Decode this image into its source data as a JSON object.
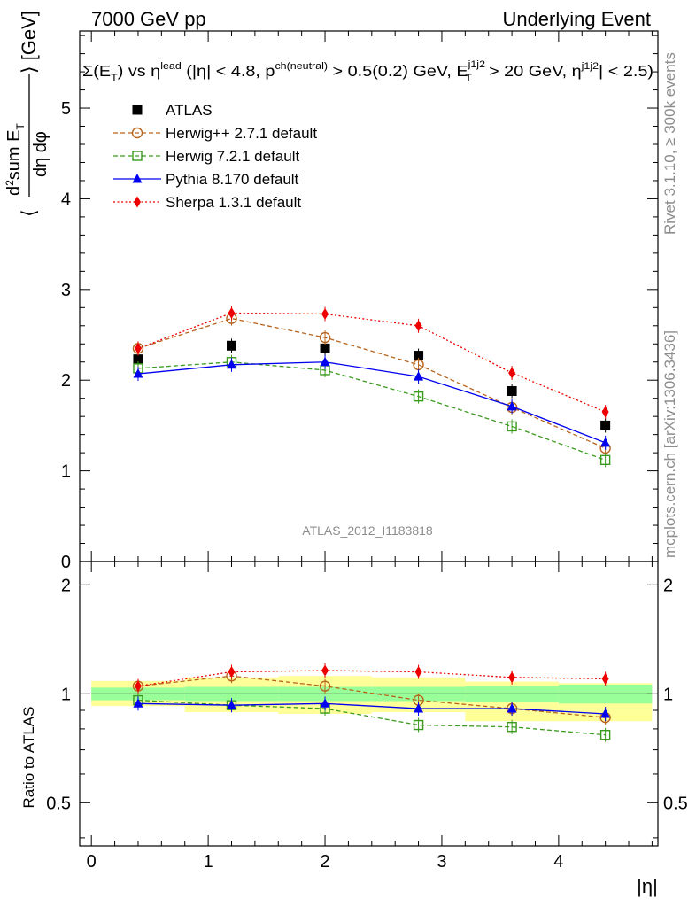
{
  "header": {
    "left": "7000 GeV pp",
    "right": "Underlying Event"
  },
  "side_labels": {
    "rivet": "Rivet 3.1.10, ≥ 300k events",
    "mcplots": "mcplots.cern.ch [arXiv:1306.3436]"
  },
  "watermark": "ATLAS_2012_I1183818",
  "chart_data": [
    {
      "type": "line",
      "panel": "main",
      "title": "Σ(E_T) vs η^lead (|η| < 4.8, p^ch(neutral) > 0.5(0.2) GeV, E_T^j1j2 > 20 GeV, η^j1j2| < 2.5)",
      "ylabel": "⟨ d²sum E_T / dη dφ ⟩ [GeV]",
      "xlabel": "|η|",
      "xlim": [
        -0.1,
        4.85
      ],
      "ylim": [
        0,
        5.85
      ],
      "xticks": [
        "0",
        "1",
        "2",
        "3",
        "4"
      ],
      "yticks": [
        "0",
        "1",
        "2",
        "3",
        "4",
        "5"
      ],
      "legend_position": "top-left",
      "x": [
        0.4,
        1.2,
        2.0,
        2.8,
        3.6,
        4.4
      ],
      "series": [
        {
          "name": "ATLAS",
          "values": [
            2.23,
            2.38,
            2.35,
            2.27,
            1.88,
            1.5
          ],
          "color": "#000000",
          "marker": "square-filled",
          "line": "none"
        },
        {
          "name": "Herwig++ 2.7.1 default",
          "values": [
            2.35,
            2.68,
            2.47,
            2.17,
            1.7,
            1.25
          ],
          "color": "#b8641c",
          "marker": "circle-open",
          "line": "dashed"
        },
        {
          "name": "Herwig 7.2.1 default",
          "values": [
            2.13,
            2.2,
            2.11,
            1.82,
            1.49,
            1.12
          ],
          "color": "#3a9a1e",
          "marker": "square-open",
          "line": "dashed"
        },
        {
          "name": "Pythia 8.170 default",
          "values": [
            2.07,
            2.17,
            2.2,
            2.04,
            1.71,
            1.31
          ],
          "color": "#0000ee",
          "marker": "triangle-filled",
          "line": "solid"
        },
        {
          "name": "Sherpa 1.3.1 default",
          "values": [
            2.35,
            2.74,
            2.73,
            2.6,
            2.08,
            1.65
          ],
          "color": "#ee0000",
          "marker": "diamond-filled",
          "line": "dotted"
        }
      ]
    },
    {
      "type": "line",
      "panel": "ratio",
      "ylabel": "Ratio to ATLAS",
      "xlabel": "|η|",
      "xlim": [
        -0.1,
        4.85
      ],
      "ylim": [
        0.38,
        2.32
      ],
      "yscale": "log",
      "yticks": [
        "0.5",
        "1",
        "2"
      ],
      "x": [
        0.4,
        1.2,
        2.0,
        2.8,
        3.6,
        4.4
      ],
      "bands": {
        "edges": [
          0.0,
          0.8,
          1.6,
          2.4,
          3.2,
          4.0,
          4.8
        ],
        "stat": [
          [
            0.96,
            1.04
          ],
          [
            0.955,
            1.045
          ],
          [
            0.955,
            1.045
          ],
          [
            0.955,
            1.045
          ],
          [
            0.95,
            1.05
          ],
          [
            0.94,
            1.06
          ]
        ],
        "total": [
          [
            0.925,
            1.085
          ],
          [
            0.89,
            1.11
          ],
          [
            0.88,
            1.12
          ],
          [
            0.89,
            1.11
          ],
          [
            0.84,
            1.08
          ],
          [
            0.84,
            1.07
          ]
        ],
        "stat_color": "#99ff99",
        "total_color": "#ffff99"
      },
      "series": [
        {
          "name": "Herwig++ 2.7.1 default",
          "values": [
            1.05,
            1.12,
            1.05,
            0.96,
            0.91,
            0.86
          ],
          "color": "#b8641c",
          "marker": "circle-open",
          "line": "dashed"
        },
        {
          "name": "Herwig 7.2.1 default",
          "values": [
            0.96,
            0.93,
            0.91,
            0.82,
            0.81,
            0.77
          ],
          "color": "#3a9a1e",
          "marker": "square-open",
          "line": "dashed"
        },
        {
          "name": "Pythia 8.170 default",
          "values": [
            0.94,
            0.93,
            0.94,
            0.91,
            0.91,
            0.88
          ],
          "color": "#0000ee",
          "marker": "triangle-filled",
          "line": "solid"
        },
        {
          "name": "Sherpa 1.3.1 default",
          "values": [
            1.05,
            1.15,
            1.16,
            1.15,
            1.11,
            1.1
          ],
          "color": "#ee0000",
          "marker": "diamond-filled",
          "line": "dotted"
        }
      ]
    }
  ]
}
